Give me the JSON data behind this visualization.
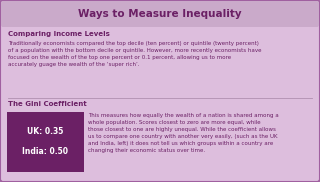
{
  "title": "Ways to Measure Inequality",
  "title_fontsize": 7.5,
  "bg_color": "#ddbedd",
  "outer_border_color": "#a060a0",
  "section1_heading": "Comparing Income Levels",
  "section1_text": "Traditionally economists compared the top decile (ten percent) or quintile (twenty percent)\nof a population with the bottom decile or quintile. However, more recently economists have\nfocused on the wealth of the top one percent or 0.1 percent, allowing us to more\naccurately guage the wealth of the ‘super rich’.",
  "section2_heading": "The Gini Coefficient",
  "gini_box_color": "#6b2065",
  "gini_box_text_line1": "UK: 0.35",
  "gini_box_text_line2": "India: 0.50",
  "gini_box_text_color": "#ffffff",
  "section2_text": "This measures how equally the wealth of a nation is shared among a\nwhole population. Scores closest to zero are more equal, while\nthose closest to one are highly unequal. While the coefficient allows\nus to compare one country with another very easily, (such as the UK\nand India, left) it does not tell us which groups within a country are\nchanging their economic status over time.",
  "heading_color": "#6b2065",
  "text_color": "#6b2065",
  "divider_color": "#b090b0"
}
